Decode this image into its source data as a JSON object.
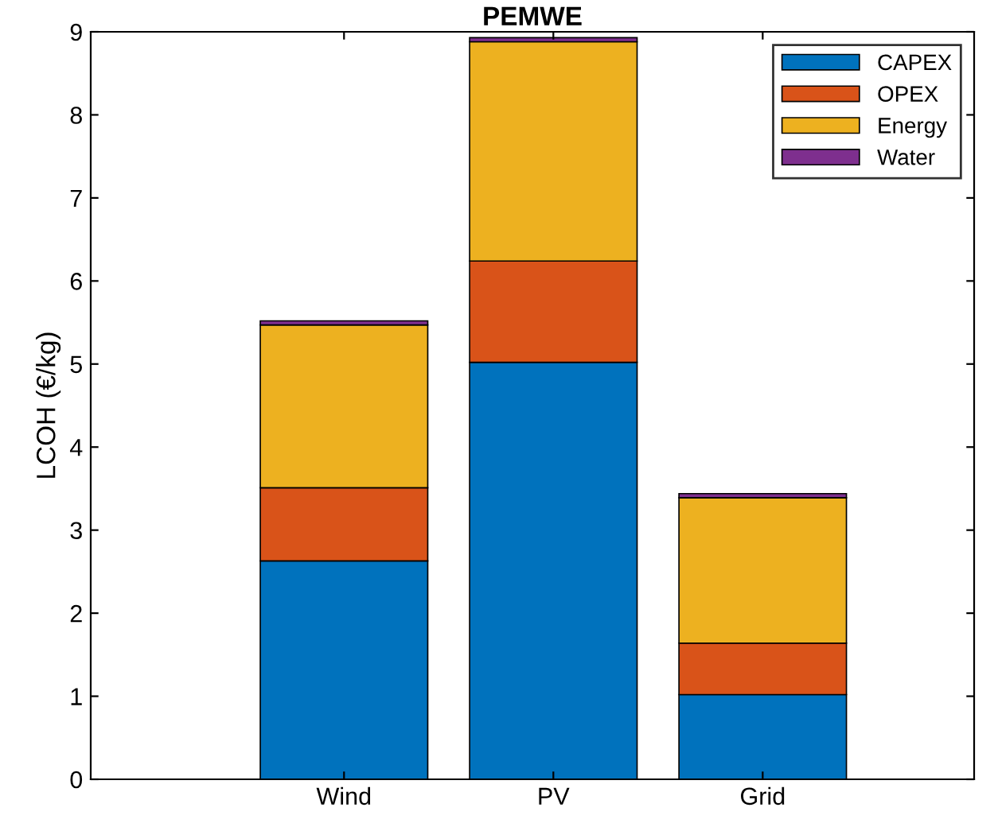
{
  "chart_data": {
    "type": "bar",
    "title": "PEMWE",
    "ylabel": "LCOH (€/kg)",
    "categories": [
      "Wind",
      "PV",
      "Grid"
    ],
    "stacked": true,
    "series": [
      {
        "name": "CAPEX",
        "color": "#0072bd",
        "values": [
          2.63,
          5.02,
          1.02
        ]
      },
      {
        "name": "OPEX",
        "color": "#d95319",
        "values": [
          0.88,
          1.22,
          0.62
        ]
      },
      {
        "name": "Energy",
        "color": "#edb120",
        "values": [
          1.96,
          2.64,
          1.75
        ]
      },
      {
        "name": "Water",
        "color": "#7e2f8e",
        "values": [
          0.05,
          0.05,
          0.05
        ]
      }
    ],
    "ylim": [
      0,
      9
    ],
    "yticks": [
      0,
      1,
      2,
      3,
      4,
      5,
      6,
      7,
      8,
      9
    ],
    "grid": false,
    "legend": "top right"
  }
}
